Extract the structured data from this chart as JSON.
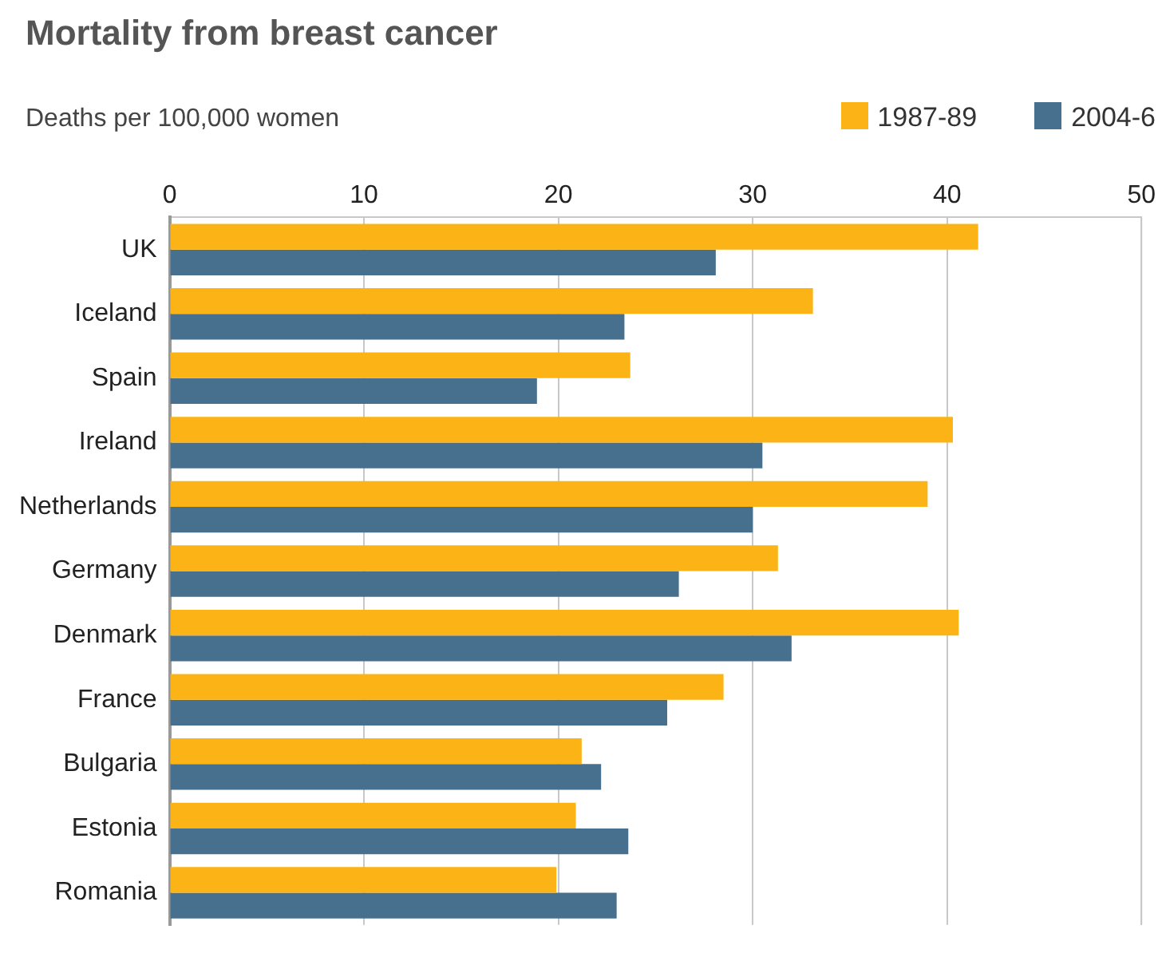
{
  "chart_data": {
    "type": "bar",
    "orientation": "horizontal",
    "title": "Mortality from breast cancer",
    "subtitle": "Deaths per 100,000 women",
    "categories": [
      "UK",
      "Iceland",
      "Spain",
      "Ireland",
      "Netherlands",
      "Germany",
      "Denmark",
      "France",
      "Bulgaria",
      "Estonia",
      "Romania"
    ],
    "series": [
      {
        "name": "1987-89",
        "color": "#fbb316",
        "values": [
          41.6,
          33.1,
          23.7,
          40.3,
          39.0,
          31.3,
          40.6,
          28.5,
          21.2,
          20.9,
          19.9
        ]
      },
      {
        "name": "2004-6",
        "color": "#476f8e",
        "values": [
          28.1,
          23.4,
          18.9,
          30.5,
          30.0,
          26.2,
          32.0,
          25.6,
          22.2,
          23.6,
          23.0
        ]
      }
    ],
    "xlim": [
      0,
      50
    ],
    "xticks": [
      0,
      10,
      20,
      30,
      40,
      50
    ],
    "grid": "x",
    "legend": "top right"
  }
}
